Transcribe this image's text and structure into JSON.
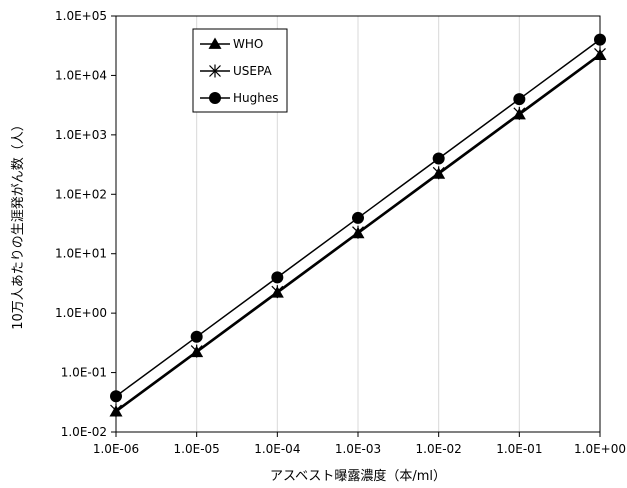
{
  "chart_data": {
    "type": "line",
    "title": "",
    "xlabel": "アスベスト曝露濃度（本/ml）",
    "ylabel": "10万人あたりの生涯発がん数（人）",
    "xscale": "log",
    "yscale": "log",
    "xlim": [
      1e-06,
      1
    ],
    "ylim": [
      0.01,
      100000
    ],
    "grid": "vertical major gridlines",
    "legend_position": "top-left",
    "x": [
      1e-06,
      1e-05,
      0.0001,
      0.001,
      0.01,
      0.1,
      1
    ],
    "x_tick_labels": [
      "1.0E-06",
      "1.0E-05",
      "1.0E-04",
      "1.0E-03",
      "1.0E-02",
      "1.0E-01",
      "1.0E+00"
    ],
    "y_ticks": [
      0.01,
      0.1,
      1,
      10,
      100,
      1000,
      10000,
      100000
    ],
    "y_tick_labels": [
      "1.0E-02",
      "1.0E-01",
      "1.0E+00",
      "1.0E+01",
      "1.0E+02",
      "1.0E+03",
      "1.0E+04",
      "1.0E+05"
    ],
    "series": [
      {
        "name": "WHO",
        "marker": "triangle",
        "color": "#000000",
        "values": [
          0.022,
          0.22,
          2.2,
          22,
          220,
          2200,
          22000
        ]
      },
      {
        "name": "USEPA",
        "marker": "asterisk",
        "color": "#000000",
        "values": [
          0.023,
          0.23,
          2.3,
          23,
          230,
          2300,
          23000
        ]
      },
      {
        "name": "Hughes",
        "marker": "circle",
        "color": "#000000",
        "values": [
          0.04,
          0.4,
          4,
          40,
          400,
          4000,
          40000
        ]
      }
    ]
  }
}
